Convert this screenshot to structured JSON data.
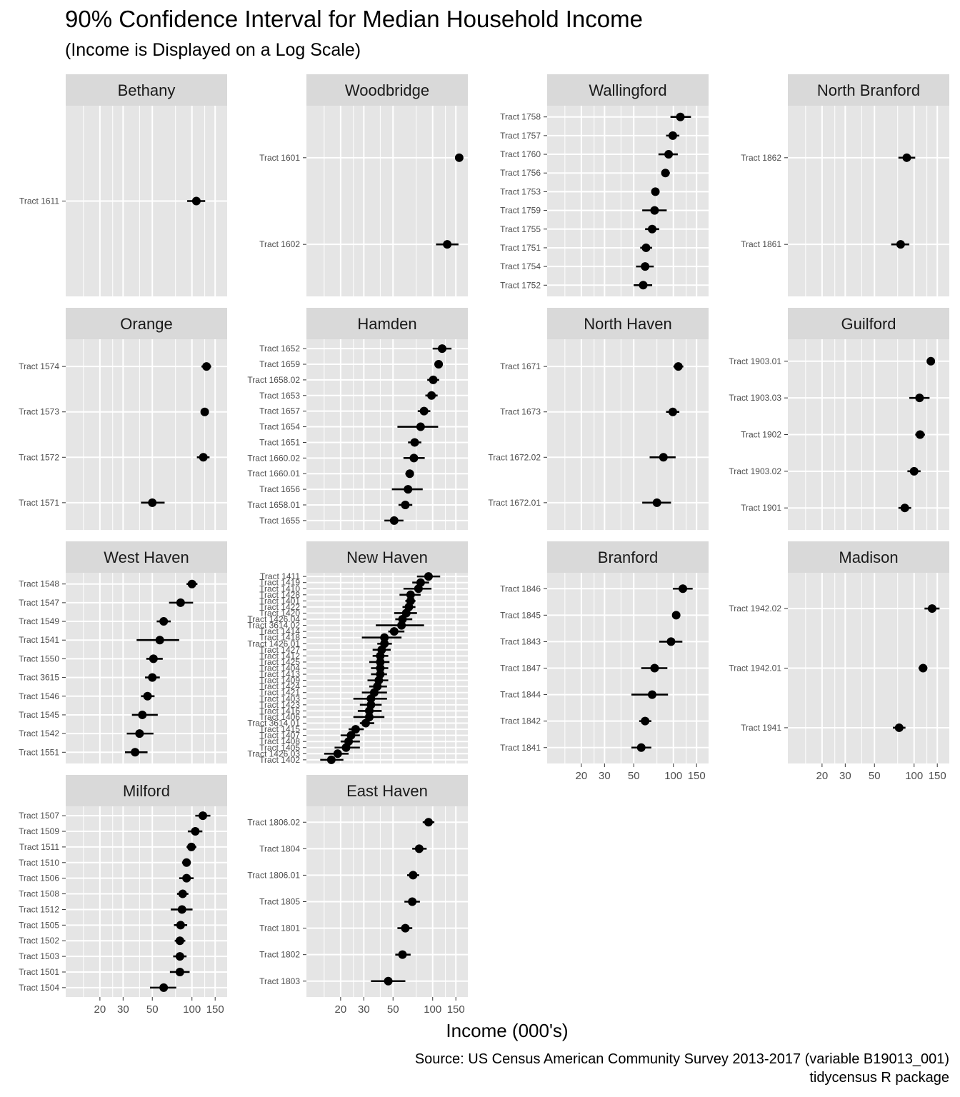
{
  "title": "90% Confidence Interval for Median Household Income",
  "subtitle": "(Income is Displayed on a Log Scale)",
  "caption": [
    "Source: US Census American Community Survey 2013-2017 (variable B19013_001)",
    "tidycensus R package"
  ],
  "colors": {
    "panel_bg": "#e5e5e5",
    "strip_bg": "#d9d9d9",
    "grid": "#ffffff",
    "point": "#000000",
    "axis_text": "#4d4d4d"
  },
  "chart_data": {
    "type": "scatter",
    "xlabel": "Income (000's)",
    "ylabel": "",
    "x_scale": "log10",
    "xlim": [
      11,
      185
    ],
    "x_ticks": [
      20,
      30,
      50,
      100,
      150
    ],
    "x_tick_labels": [
      "20",
      "30",
      "50",
      "100",
      "150"
    ],
    "grid": true,
    "facets": [
      {
        "name": "Bethany",
        "tracts": [
          {
            "label": "Tract 1611",
            "est": 108,
            "lo": 92,
            "hi": 126
          }
        ]
      },
      {
        "name": "Woodbridge",
        "tracts": [
          {
            "label": "Tract 1601",
            "est": 159,
            "lo": 152,
            "hi": 166
          },
          {
            "label": "Tract 1602",
            "est": 129,
            "lo": 106,
            "hi": 157
          }
        ]
      },
      {
        "name": "Wallingford",
        "tracts": [
          {
            "label": "Tract 1758",
            "est": 113,
            "lo": 95,
            "hi": 136
          },
          {
            "label": "Tract 1757",
            "est": 99,
            "lo": 88,
            "hi": 111
          },
          {
            "label": "Tract 1760",
            "est": 92,
            "lo": 77,
            "hi": 108
          },
          {
            "label": "Tract 1756",
            "est": 87,
            "lo": 81,
            "hi": 94
          },
          {
            "label": "Tract 1753",
            "est": 73,
            "lo": 69,
            "hi": 77
          },
          {
            "label": "Tract 1759",
            "est": 72,
            "lo": 58,
            "hi": 89
          },
          {
            "label": "Tract 1755",
            "est": 69,
            "lo": 61,
            "hi": 78
          },
          {
            "label": "Tract 1751",
            "est": 62,
            "lo": 56,
            "hi": 69
          },
          {
            "label": "Tract 1754",
            "est": 61,
            "lo": 52,
            "hi": 71
          },
          {
            "label": "Tract 1752",
            "est": 59,
            "lo": 50,
            "hi": 69
          }
        ]
      },
      {
        "name": "North Branford",
        "tracts": [
          {
            "label": "Tract 1862",
            "est": 88,
            "lo": 76,
            "hi": 102
          },
          {
            "label": "Tract 1861",
            "est": 79,
            "lo": 67,
            "hi": 92
          }
        ]
      },
      {
        "name": "Orange",
        "tracts": [
          {
            "label": "Tract 1574",
            "est": 129,
            "lo": 118,
            "hi": 140
          },
          {
            "label": "Tract 1573",
            "est": 125,
            "lo": 118,
            "hi": 132
          },
          {
            "label": "Tract 1572",
            "est": 122,
            "lo": 109,
            "hi": 136
          },
          {
            "label": "Tract 1571",
            "est": 50,
            "lo": 41,
            "hi": 62
          }
        ]
      },
      {
        "name": "Hamden",
        "tracts": [
          {
            "label": "Tract 1652",
            "est": 118,
            "lo": 100,
            "hi": 139
          },
          {
            "label": "Tract 1659",
            "est": 111,
            "lo": 103,
            "hi": 119
          },
          {
            "label": "Tract 1658.02",
            "est": 101,
            "lo": 91,
            "hi": 112
          },
          {
            "label": "Tract 1653",
            "est": 98,
            "lo": 88,
            "hi": 109
          },
          {
            "label": "Tract 1657",
            "est": 86,
            "lo": 77,
            "hi": 96
          },
          {
            "label": "Tract 1654",
            "est": 81,
            "lo": 54,
            "hi": 110
          },
          {
            "label": "Tract 1651",
            "est": 73,
            "lo": 65,
            "hi": 82
          },
          {
            "label": "Tract 1660.02",
            "est": 72,
            "lo": 60,
            "hi": 87
          },
          {
            "label": "Tract 1660.01",
            "est": 67,
            "lo": 62,
            "hi": 72
          },
          {
            "label": "Tract 1656",
            "est": 65,
            "lo": 49,
            "hi": 84
          },
          {
            "label": "Tract 1658.01",
            "est": 62,
            "lo": 55,
            "hi": 70
          },
          {
            "label": "Tract 1655",
            "est": 51,
            "lo": 43,
            "hi": 60
          }
        ]
      },
      {
        "name": "North Haven",
        "tracts": [
          {
            "label": "Tract 1671",
            "est": 109,
            "lo": 100,
            "hi": 119
          },
          {
            "label": "Tract 1673",
            "est": 99,
            "lo": 88,
            "hi": 111
          },
          {
            "label": "Tract 1672.02",
            "est": 84,
            "lo": 66,
            "hi": 104
          },
          {
            "label": "Tract 1672.01",
            "est": 75,
            "lo": 58,
            "hi": 96
          }
        ]
      },
      {
        "name": "Guilford",
        "tracts": [
          {
            "label": "Tract 1903.01",
            "est": 134,
            "lo": 125,
            "hi": 144
          },
          {
            "label": "Tract 1903.03",
            "est": 110,
            "lo": 92,
            "hi": 131
          },
          {
            "label": "Tract 1902",
            "est": 111,
            "lo": 102,
            "hi": 121
          },
          {
            "label": "Tract 1903.02",
            "est": 100,
            "lo": 89,
            "hi": 112
          },
          {
            "label": "Tract 1901",
            "est": 85,
            "lo": 76,
            "hi": 95
          }
        ]
      },
      {
        "name": "West Haven",
        "tracts": [
          {
            "label": "Tract 1548",
            "est": 100,
            "lo": 91,
            "hi": 110
          },
          {
            "label": "Tract 1547",
            "est": 82,
            "lo": 67,
            "hi": 102
          },
          {
            "label": "Tract 1549",
            "est": 61,
            "lo": 54,
            "hi": 69
          },
          {
            "label": "Tract 1541",
            "est": 57,
            "lo": 38,
            "hi": 80
          },
          {
            "label": "Tract 1550",
            "est": 51,
            "lo": 45,
            "hi": 60
          },
          {
            "label": "Tract 3615",
            "est": 50,
            "lo": 44,
            "hi": 57
          },
          {
            "label": "Tract 1546",
            "est": 46,
            "lo": 41,
            "hi": 52
          },
          {
            "label": "Tract 1545",
            "est": 42,
            "lo": 35,
            "hi": 55
          },
          {
            "label": "Tract 1542",
            "est": 40,
            "lo": 32,
            "hi": 51
          },
          {
            "label": "Tract 1551",
            "est": 37,
            "lo": 31,
            "hi": 46
          }
        ]
      },
      {
        "name": "New Haven",
        "tracts": [
          {
            "label": "Tract 1411",
            "est": 93,
            "lo": 76,
            "hi": 114
          },
          {
            "label": "Tract 1419",
            "est": 81,
            "lo": 70,
            "hi": 94
          },
          {
            "label": "Tract 1410",
            "est": 78,
            "lo": 60,
            "hi": 98
          },
          {
            "label": "Tract 1428",
            "est": 68,
            "lo": 56,
            "hi": 81
          },
          {
            "label": "Tract 1401",
            "est": 68,
            "lo": 62,
            "hi": 74
          },
          {
            "label": "Tract 1422",
            "est": 66,
            "lo": 59,
            "hi": 74
          },
          {
            "label": "Tract 1420",
            "est": 63,
            "lo": 51,
            "hi": 76
          },
          {
            "label": "Tract 1426.04",
            "est": 59,
            "lo": 52,
            "hi": 70
          },
          {
            "label": "Tract 3614.02",
            "est": 58,
            "lo": 37,
            "hi": 86
          },
          {
            "label": "Tract 1414",
            "est": 51,
            "lo": 46,
            "hi": 61
          },
          {
            "label": "Tract 1418",
            "est": 43,
            "lo": 29,
            "hi": 58
          },
          {
            "label": "Tract 1426.01",
            "est": 43,
            "lo": 38,
            "hi": 49
          },
          {
            "label": "Tract 1427",
            "est": 41,
            "lo": 35,
            "hi": 48
          },
          {
            "label": "Tract 1412",
            "est": 40,
            "lo": 35,
            "hi": 46
          },
          {
            "label": "Tract 1425",
            "est": 40,
            "lo": 33,
            "hi": 47
          },
          {
            "label": "Tract 1404",
            "est": 40,
            "lo": 34,
            "hi": 46
          },
          {
            "label": "Tract 1413",
            "est": 40,
            "lo": 34,
            "hi": 45
          },
          {
            "label": "Tract 1409",
            "est": 39,
            "lo": 32,
            "hi": 46
          },
          {
            "label": "Tract 1424",
            "est": 38,
            "lo": 33,
            "hi": 45
          },
          {
            "label": "Tract 1421",
            "est": 36,
            "lo": 29,
            "hi": 45
          },
          {
            "label": "Tract 1403",
            "est": 34,
            "lo": 25,
            "hi": 45
          },
          {
            "label": "Tract 1423",
            "est": 34,
            "lo": 28,
            "hi": 41
          },
          {
            "label": "Tract 1416",
            "est": 33,
            "lo": 27,
            "hi": 41
          },
          {
            "label": "Tract 1406",
            "est": 33,
            "lo": 25,
            "hi": 43
          },
          {
            "label": "Tract 3614.01",
            "est": 31,
            "lo": 28,
            "hi": 36
          },
          {
            "label": "Tract 1415",
            "est": 26,
            "lo": 23,
            "hi": 30
          },
          {
            "label": "Tract 1407",
            "est": 24,
            "lo": 20,
            "hi": 28
          },
          {
            "label": "Tract 1408",
            "est": 23,
            "lo": 20,
            "hi": 28
          },
          {
            "label": "Tract 1405",
            "est": 22,
            "lo": 18,
            "hi": 28
          },
          {
            "label": "Tract 1426.03",
            "est": 19,
            "lo": 15,
            "hi": 23
          },
          {
            "label": "Tract 1402",
            "est": 17,
            "lo": 14,
            "hi": 21
          }
        ]
      },
      {
        "name": "Branford",
        "tracts": [
          {
            "label": "Tract 1846",
            "est": 118,
            "lo": 99,
            "hi": 140
          },
          {
            "label": "Tract 1845",
            "est": 105,
            "lo": 99,
            "hi": 112
          },
          {
            "label": "Tract 1843",
            "est": 96,
            "lo": 78,
            "hi": 117
          },
          {
            "label": "Tract 1847",
            "est": 72,
            "lo": 57,
            "hi": 90
          },
          {
            "label": "Tract 1844",
            "est": 69,
            "lo": 48,
            "hi": 91
          },
          {
            "label": "Tract 1842",
            "est": 61,
            "lo": 55,
            "hi": 68
          },
          {
            "label": "Tract 1841",
            "est": 57,
            "lo": 48,
            "hi": 68
          }
        ]
      },
      {
        "name": "Madison",
        "tracts": [
          {
            "label": "Tract 1942.02",
            "est": 137,
            "lo": 120,
            "hi": 156
          },
          {
            "label": "Tract 1942.01",
            "est": 117,
            "lo": 108,
            "hi": 126
          },
          {
            "label": "Tract 1941",
            "est": 77,
            "lo": 69,
            "hi": 86
          }
        ]
      },
      {
        "name": "Milford",
        "tracts": [
          {
            "label": "Tract 1507",
            "est": 121,
            "lo": 106,
            "hi": 138
          },
          {
            "label": "Tract 1509",
            "est": 106,
            "lo": 93,
            "hi": 120
          },
          {
            "label": "Tract 1511",
            "est": 99,
            "lo": 91,
            "hi": 108
          },
          {
            "label": "Tract 1510",
            "est": 91,
            "lo": 84,
            "hi": 98
          },
          {
            "label": "Tract 1506",
            "est": 91,
            "lo": 80,
            "hi": 103
          },
          {
            "label": "Tract 1508",
            "est": 85,
            "lo": 77,
            "hi": 94
          },
          {
            "label": "Tract 1512",
            "est": 84,
            "lo": 69,
            "hi": 101
          },
          {
            "label": "Tract 1505",
            "est": 82,
            "lo": 73,
            "hi": 92
          },
          {
            "label": "Tract 1502",
            "est": 81,
            "lo": 74,
            "hi": 89
          },
          {
            "label": "Tract 1503",
            "est": 81,
            "lo": 72,
            "hi": 91
          },
          {
            "label": "Tract 1501",
            "est": 81,
            "lo": 68,
            "hi": 96
          },
          {
            "label": "Tract 1504",
            "est": 61,
            "lo": 48,
            "hi": 76
          }
        ]
      },
      {
        "name": "East Haven",
        "tracts": [
          {
            "label": "Tract 1806.02",
            "est": 93,
            "lo": 84,
            "hi": 103
          },
          {
            "label": "Tract 1804",
            "est": 79,
            "lo": 70,
            "hi": 90
          },
          {
            "label": "Tract 1806.01",
            "est": 71,
            "lo": 64,
            "hi": 79
          },
          {
            "label": "Tract 1805",
            "est": 70,
            "lo": 61,
            "hi": 80
          },
          {
            "label": "Tract 1801",
            "est": 62,
            "lo": 54,
            "hi": 70
          },
          {
            "label": "Tract 1802",
            "est": 59,
            "lo": 52,
            "hi": 68
          },
          {
            "label": "Tract 1803",
            "est": 46,
            "lo": 34,
            "hi": 62
          }
        ]
      }
    ]
  }
}
